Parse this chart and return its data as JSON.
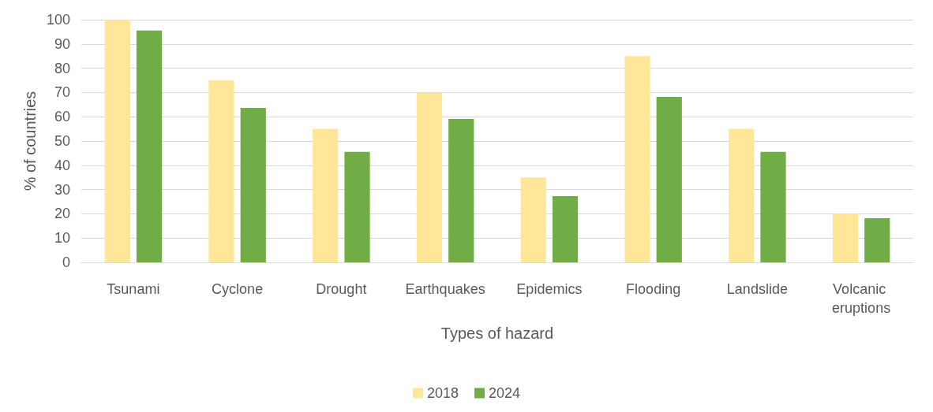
{
  "chart_data": {
    "type": "bar",
    "xlabel": "Types of hazard",
    "ylabel": "% of countries",
    "categories": [
      "Tsunami",
      "Cyclone",
      "Drought",
      "Earthquakes",
      "Epidemics",
      "Flooding",
      "Landslide",
      "Volcanic eruptions"
    ],
    "series": [
      {
        "name": "2018",
        "color": "#ffe699",
        "values": [
          100,
          75,
          55,
          70,
          35,
          85,
          55,
          20
        ]
      },
      {
        "name": "2024",
        "color": "#70ad47",
        "values": [
          95.5,
          63.6,
          45.5,
          59.1,
          27.3,
          68.2,
          45.5,
          18.2
        ]
      }
    ],
    "ylim": [
      0,
      100
    ],
    "yticks": [
      0,
      10,
      20,
      30,
      40,
      50,
      60,
      70,
      80,
      90,
      100
    ],
    "grid": "y",
    "legend": "bottom"
  }
}
